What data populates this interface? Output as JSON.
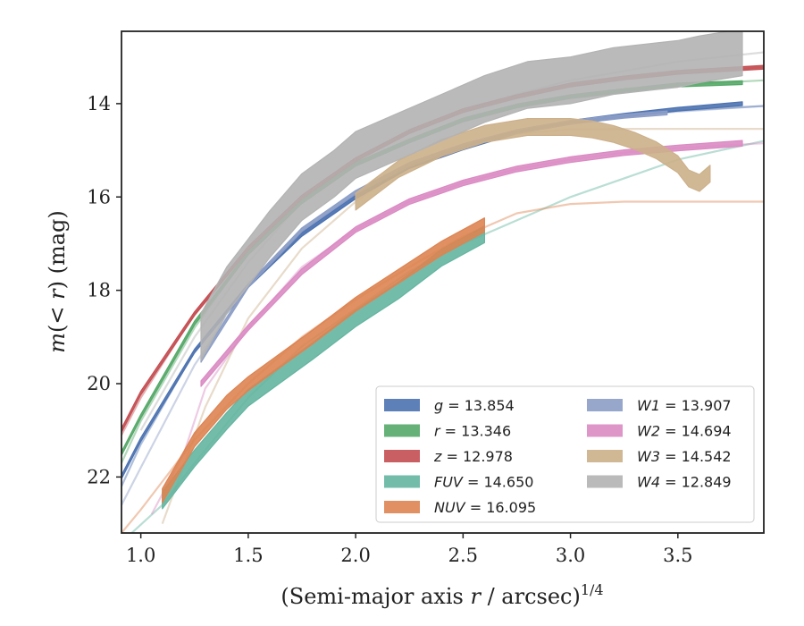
{
  "chart_data": {
    "type": "line",
    "xlabel": "(Semi-major axis r / arcsec)^{1/4}",
    "xlabel_main": "(Semi-major axis ",
    "xlabel_var": "r",
    "xlabel_rest": " / arcsec)",
    "xlabel_exp": "1/4",
    "ylabel": "m(< r) (mag)",
    "ylabel_m": "m",
    "ylabel_mid": "(< ",
    "ylabel_r": "r",
    "ylabel_end": ") (mag)",
    "xlim": [
      0.91,
      3.9
    ],
    "ylim": [
      23.2,
      12.45
    ],
    "y_inverted": true,
    "grid": false,
    "legend_position": "lower-right",
    "xticks": [
      1.0,
      1.5,
      2.0,
      2.5,
      3.0,
      3.5
    ],
    "xtick_labels": [
      "1.0",
      "1.5",
      "2.0",
      "2.5",
      "3.0",
      "3.5"
    ],
    "yticks": [
      14,
      16,
      18,
      20,
      22
    ],
    "ytick_labels": [
      "14",
      "16",
      "18",
      "20",
      "22"
    ],
    "series": [
      {
        "name": "g",
        "value": "13.854",
        "label": "g = 13.854",
        "color": "#4c72b0",
        "fit_x": [
          0.91,
          1.0,
          1.25,
          1.5,
          1.75,
          2.0,
          2.25,
          2.5,
          2.75,
          3.0,
          3.25,
          3.5,
          3.9
        ],
        "fit_y": [
          22.2,
          21.3,
          19.3,
          17.9,
          16.8,
          16.0,
          15.35,
          14.95,
          14.6,
          14.4,
          14.25,
          14.15,
          14.05
        ],
        "data_x": [
          0.91,
          1.0,
          1.25,
          1.5,
          1.75,
          2.0,
          2.25,
          2.5,
          2.75,
          3.0,
          3.25,
          3.5,
          3.8
        ],
        "data_y": [
          22.0,
          21.2,
          19.3,
          17.9,
          16.8,
          16.0,
          15.35,
          14.95,
          14.6,
          14.4,
          14.25,
          14.12,
          14.0
        ],
        "data_half_width": 0.04
      },
      {
        "name": "r",
        "value": "13.346",
        "label": "r = 13.346",
        "color": "#55a868",
        "fit_x": [
          0.91,
          1.0,
          1.25,
          1.5,
          1.75,
          2.0,
          2.25,
          2.5,
          2.75,
          3.0,
          3.25,
          3.5,
          3.9
        ],
        "fit_y": [
          21.7,
          20.8,
          18.8,
          17.2,
          16.1,
          15.3,
          14.8,
          14.35,
          14.05,
          13.85,
          13.7,
          13.6,
          13.5
        ],
        "data_x": [
          0.91,
          1.0,
          1.25,
          1.5,
          1.75,
          2.0,
          2.25,
          2.5,
          2.75,
          3.0,
          3.25,
          3.5,
          3.8
        ],
        "data_y": [
          21.5,
          20.7,
          18.7,
          17.2,
          16.1,
          15.3,
          14.8,
          14.35,
          14.05,
          13.85,
          13.72,
          13.6,
          13.55
        ],
        "data_half_width": 0.04
      },
      {
        "name": "z",
        "value": "12.978",
        "label": "z = 12.978",
        "color": "#c44e52",
        "fit_x": [
          0.91,
          1.0,
          1.25,
          1.5,
          1.75,
          2.0,
          2.25,
          2.5,
          2.75,
          3.0,
          3.25,
          3.5,
          3.9
        ],
        "fit_y": [
          21.1,
          20.3,
          18.5,
          17.1,
          16.0,
          15.2,
          14.6,
          14.15,
          13.85,
          13.6,
          13.45,
          13.33,
          13.22
        ],
        "data_x": [
          0.91,
          1.0,
          1.25,
          1.5,
          1.75,
          2.0,
          2.25,
          2.5,
          2.75,
          3.0,
          3.25,
          3.5,
          3.9
        ],
        "data_y": [
          21.0,
          20.2,
          18.5,
          17.1,
          16.0,
          15.2,
          14.6,
          14.15,
          13.85,
          13.6,
          13.45,
          13.33,
          13.22
        ],
        "data_half_width": 0.04
      },
      {
        "name": "FUV",
        "value": "14.650",
        "label": "FUV = 14.650",
        "color": "#64b5a0",
        "fit_x": [
          0.91,
          1.1,
          1.25,
          1.5,
          1.75,
          2.0,
          2.25,
          2.5,
          2.75,
          3.0,
          3.25,
          3.5,
          3.9
        ],
        "fit_y": [
          23.4,
          22.6,
          21.7,
          20.3,
          19.2,
          18.4,
          17.6,
          17.0,
          16.5,
          16.0,
          15.6,
          15.2,
          14.8
        ],
        "data_x": [
          1.1,
          1.25,
          1.4,
          1.5,
          1.65,
          1.8,
          2.0,
          2.2,
          2.4,
          2.6
        ],
        "data_y": [
          22.5,
          21.6,
          20.8,
          20.3,
          19.8,
          19.3,
          18.6,
          18.0,
          17.3,
          16.8
        ],
        "data_half_width": 0.18
      },
      {
        "name": "NUV",
        "value": "16.095",
        "label": "NUV = 16.095",
        "color": "#dd8452",
        "fit_x": [
          0.91,
          1.0,
          1.25,
          1.5,
          1.75,
          2.0,
          2.25,
          2.5,
          2.75,
          3.0,
          3.25,
          3.5,
          3.9
        ],
        "fit_y": [
          23.2,
          22.7,
          21.2,
          20.0,
          19.0,
          18.2,
          17.5,
          16.85,
          16.35,
          16.15,
          16.1,
          16.1,
          16.1
        ],
        "data_x": [
          1.1,
          1.25,
          1.4,
          1.5,
          1.65,
          1.8,
          2.0,
          2.2,
          2.4,
          2.6
        ],
        "data_y": [
          22.4,
          21.2,
          20.4,
          20.0,
          19.5,
          19.0,
          18.3,
          17.7,
          17.1,
          16.6
        ],
        "data_half_width": 0.15
      },
      {
        "name": "W1",
        "value": "13.907",
        "label": "W1 = 13.907",
        "color": "#8c9dc6",
        "fit_x": [
          0.91,
          1.0,
          1.25,
          1.5,
          1.75,
          2.0,
          2.25,
          2.5,
          2.75,
          3.0,
          3.25,
          3.5,
          3.9
        ],
        "fit_y": [
          22.6,
          21.8,
          19.6,
          17.9,
          16.7,
          15.9,
          15.3,
          14.9,
          14.6,
          14.4,
          14.27,
          14.17,
          14.05
        ],
        "data_x": [
          1.28,
          1.5,
          1.75,
          2.0,
          2.25,
          2.5,
          2.75,
          3.0,
          3.25,
          3.45
        ],
        "data_y": [
          19.5,
          17.9,
          16.7,
          15.9,
          15.3,
          14.9,
          14.6,
          14.4,
          14.27,
          14.2
        ],
        "data_half_width": 0.04
      },
      {
        "name": "W2",
        "value": "14.694",
        "label": "W2 = 14.694",
        "color": "#da8bc3",
        "fit_x": [
          1.05,
          1.2,
          1.3,
          1.5,
          1.75,
          2.0,
          2.25,
          2.5,
          2.75,
          3.0,
          3.25,
          3.5,
          3.9
        ],
        "fit_y": [
          22.8,
          21.5,
          20.1,
          18.8,
          17.5,
          16.7,
          16.1,
          15.7,
          15.4,
          15.2,
          15.05,
          14.95,
          14.85
        ],
        "data_x": [
          1.28,
          1.5,
          1.75,
          2.0,
          2.25,
          2.5,
          2.75,
          3.0,
          3.25,
          3.5,
          3.8
        ],
        "data_y": [
          20.0,
          18.8,
          17.6,
          16.7,
          16.1,
          15.7,
          15.4,
          15.2,
          15.05,
          14.95,
          14.85
        ],
        "data_half_width": 0.06
      },
      {
        "name": "W3",
        "value": "14.542",
        "label": "W3 = 14.542",
        "color": "#ccb08a",
        "fit_x": [
          1.1,
          1.3,
          1.5,
          1.75,
          2.0,
          2.25,
          2.5,
          2.75,
          3.0,
          3.25,
          3.5,
          3.9
        ],
        "fit_y": [
          23.0,
          20.5,
          18.6,
          17.1,
          16.1,
          15.3,
          14.9,
          14.65,
          14.55,
          14.54,
          14.54,
          14.54
        ],
        "data_x": [
          2.0,
          2.2,
          2.4,
          2.6,
          2.8,
          3.0,
          3.1,
          3.2,
          3.3,
          3.4,
          3.5,
          3.55,
          3.6,
          3.65
        ],
        "data_y": [
          16.1,
          15.4,
          14.95,
          14.65,
          14.5,
          14.5,
          14.55,
          14.65,
          14.8,
          15.0,
          15.3,
          15.6,
          15.7,
          15.5
        ],
        "data_half_width": 0.18
      },
      {
        "name": "W4",
        "value": "12.849",
        "label": "W4 = 12.849",
        "color": "#b3b3b3",
        "fit_x": [
          1.0,
          1.25,
          1.5,
          1.75,
          2.0,
          2.25,
          2.5,
          2.75,
          3.0,
          3.25,
          3.5,
          3.9
        ],
        "fit_y": [
          21.0,
          19.0,
          17.4,
          16.1,
          15.2,
          14.6,
          14.15,
          13.8,
          13.5,
          13.3,
          13.1,
          12.9
        ],
        "data_x": [
          1.28,
          1.4,
          1.5,
          1.6,
          1.75,
          1.9,
          2.0,
          2.2,
          2.4,
          2.6,
          2.8,
          3.0,
          3.2,
          3.4,
          3.5,
          3.6,
          3.8
        ],
        "data_y": [
          19.0,
          18.0,
          17.4,
          16.8,
          16.0,
          15.5,
          15.1,
          14.7,
          14.3,
          13.9,
          13.6,
          13.5,
          13.3,
          13.2,
          13.15,
          13.05,
          12.9
        ],
        "data_half_width": 0.5
      }
    ]
  }
}
